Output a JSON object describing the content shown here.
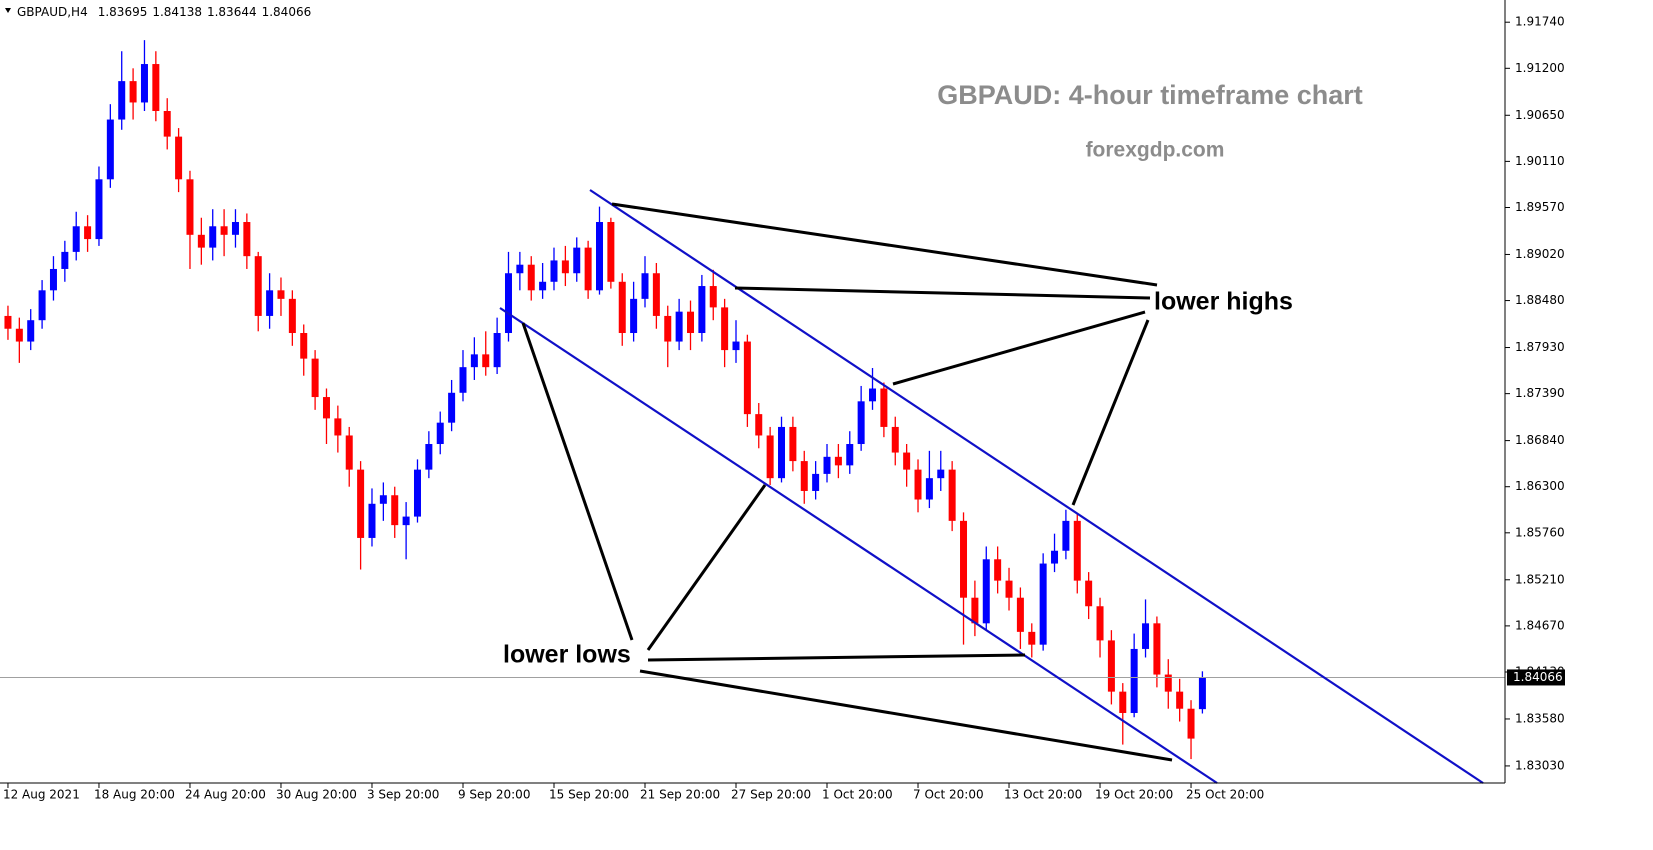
{
  "chart_data": {
    "type": "candlestick",
    "symbol": "GBPAUD,H4",
    "title": "GBPAUD: 4-hour timeframe chart",
    "subtitle": "forexgdp.com",
    "annotations": [
      "lower highs",
      "lower lows"
    ],
    "colors": {
      "up": "#0000ff",
      "down": "#ff0000"
    },
    "open": [
      1.883,
      1.8815,
      1.88,
      1.8825,
      1.886,
      1.8885,
      1.8905,
      1.8935,
      1.892,
      1.899,
      1.906,
      1.9105,
      1.908,
      1.9125,
      1.907,
      1.904,
      1.899,
      1.8925,
      1.891,
      1.8935,
      1.8925,
      1.894,
      1.89,
      1.883,
      1.886,
      1.885,
      1.881,
      1.878,
      1.8735,
      1.871,
      1.869,
      1.865,
      1.857,
      1.861,
      1.862,
      1.8585,
      1.8595,
      1.865,
      1.868,
      1.8705,
      1.874,
      1.877,
      1.8785,
      1.877,
      1.881,
      1.888,
      1.889,
      1.886,
      1.887,
      1.8895,
      1.888,
      1.891,
      1.886,
      1.894,
      1.887,
      1.881,
      1.885,
      1.888,
      1.883,
      1.88,
      1.8835,
      1.881,
      1.8865,
      1.884,
      1.879,
      1.88,
      1.8715,
      1.869,
      1.864,
      1.87,
      1.866,
      1.8625,
      1.8645,
      1.8665,
      1.8655,
      1.868,
      1.873,
      1.8745,
      1.87,
      1.867,
      1.865,
      1.8615,
      1.864,
      1.865,
      1.859,
      1.85,
      1.847,
      1.8545,
      1.852,
      1.85,
      1.846,
      1.8445,
      1.854,
      1.8555,
      1.859,
      1.852,
      1.849,
      1.845,
      1.839,
      1.8365,
      1.844,
      1.847,
      1.841,
      1.839,
      1.837,
      1.83695
    ],
    "high": [
      1.8842,
      1.8828,
      1.8838,
      1.8872,
      1.89,
      1.8918,
      1.8952,
      1.8948,
      1.9005,
      1.9078,
      1.914,
      1.912,
      1.9153,
      1.914,
      1.9085,
      1.905,
      1.9,
      1.8945,
      1.8955,
      1.8955,
      1.8955,
      1.895,
      1.8905,
      1.888,
      1.8875,
      1.886,
      1.882,
      1.879,
      1.8745,
      1.8725,
      1.87,
      1.866,
      1.8628,
      1.8635,
      1.863,
      1.8612,
      1.8662,
      1.8695,
      1.8718,
      1.8755,
      1.879,
      1.8805,
      1.8812,
      1.8828,
      1.8905,
      1.8905,
      1.89,
      1.8892,
      1.891,
      1.8912,
      1.8922,
      1.8918,
      1.8958,
      1.8945,
      1.888,
      1.887,
      1.89,
      1.8892,
      1.8842,
      1.885,
      1.8848,
      1.8878,
      1.8884,
      1.885,
      1.8825,
      1.8808,
      1.8728,
      1.87,
      1.8712,
      1.8712,
      1.8672,
      1.866,
      1.868,
      1.868,
      1.8695,
      1.8748,
      1.8769,
      1.8752,
      1.8712,
      1.868,
      1.8662,
      1.8672,
      1.8672,
      1.866,
      1.86,
      1.852,
      1.856,
      1.856,
      1.8535,
      1.8512,
      1.847,
      1.8552,
      1.8575,
      1.8603,
      1.8598,
      1.853,
      1.85,
      1.8462,
      1.84,
      1.8458,
      1.8498,
      1.8478,
      1.8428,
      1.8405,
      1.838,
      1.84138
    ],
    "low": [
      1.8802,
      1.8775,
      1.879,
      1.8815,
      1.8848,
      1.887,
      1.8895,
      1.8905,
      1.8912,
      1.898,
      1.9048,
      1.906,
      1.907,
      1.9058,
      1.9025,
      1.8975,
      1.8885,
      1.889,
      1.8895,
      1.89,
      1.891,
      1.8885,
      1.8812,
      1.8815,
      1.883,
      1.8795,
      1.876,
      1.872,
      1.868,
      1.867,
      1.863,
      1.8533,
      1.856,
      1.859,
      1.857,
      1.8545,
      1.8588,
      1.864,
      1.8668,
      1.8695,
      1.873,
      1.8755,
      1.876,
      1.8762,
      1.88,
      1.886,
      1.8848,
      1.885,
      1.886,
      1.8865,
      1.887,
      1.885,
      1.8855,
      1.8862,
      1.8795,
      1.88,
      1.884,
      1.8815,
      1.877,
      1.879,
      1.879,
      1.88,
      1.8825,
      1.877,
      1.8775,
      1.87,
      1.8675,
      1.8632,
      1.8635,
      1.8648,
      1.861,
      1.8615,
      1.8635,
      1.864,
      1.8645,
      1.8672,
      1.872,
      1.8688,
      1.8655,
      1.863,
      1.86,
      1.8605,
      1.8625,
      1.8578,
      1.8445,
      1.8455,
      1.8462,
      1.8505,
      1.8485,
      1.844,
      1.843,
      1.8438,
      1.853,
      1.8545,
      1.8505,
      1.8475,
      1.843,
      1.8375,
      1.8328,
      1.836,
      1.843,
      1.8395,
      1.837,
      1.8355,
      1.8311,
      1.83644
    ],
    "close": [
      1.8815,
      1.88,
      1.8825,
      1.886,
      1.8885,
      1.8905,
      1.8935,
      1.892,
      1.899,
      1.906,
      1.9105,
      1.908,
      1.9125,
      1.907,
      1.904,
      1.899,
      1.8925,
      1.891,
      1.8935,
      1.8925,
      1.894,
      1.89,
      1.883,
      1.886,
      1.885,
      1.881,
      1.878,
      1.8735,
      1.871,
      1.869,
      1.865,
      1.857,
      1.861,
      1.862,
      1.8585,
      1.8595,
      1.865,
      1.868,
      1.8705,
      1.874,
      1.877,
      1.8785,
      1.877,
      1.881,
      1.888,
      1.889,
      1.886,
      1.887,
      1.8895,
      1.888,
      1.891,
      1.886,
      1.894,
      1.887,
      1.881,
      1.885,
      1.888,
      1.883,
      1.88,
      1.8835,
      1.881,
      1.8865,
      1.884,
      1.879,
      1.88,
      1.8715,
      1.869,
      1.864,
      1.87,
      1.866,
      1.8625,
      1.8645,
      1.8665,
      1.8655,
      1.868,
      1.873,
      1.8745,
      1.87,
      1.867,
      1.865,
      1.8615,
      1.864,
      1.865,
      1.859,
      1.85,
      1.847,
      1.8545,
      1.852,
      1.85,
      1.846,
      1.8445,
      1.854,
      1.8555,
      1.859,
      1.852,
      1.849,
      1.845,
      1.839,
      1.8365,
      1.844,
      1.847,
      1.841,
      1.839,
      1.837,
      1.8335,
      1.84066
    ],
    "xlim": [
      -0.7,
      131.6
    ],
    "xticks": [
      {
        "value": 0,
        "label": "12 Aug 2021"
      },
      {
        "value": 8,
        "label": "18 Aug 20:00"
      },
      {
        "value": 16,
        "label": "24 Aug 20:00"
      },
      {
        "value": 24,
        "label": "30 Aug 20:00"
      },
      {
        "value": 32,
        "label": "3 Sep 20:00"
      },
      {
        "value": 40,
        "label": "9 Sep 20:00"
      },
      {
        "value": 48,
        "label": "15 Sep 20:00"
      },
      {
        "value": 56,
        "label": "21 Sep 20:00"
      },
      {
        "value": 64,
        "label": "27 Sep 20:00"
      },
      {
        "value": 72,
        "label": "1 Oct 20:00"
      },
      {
        "value": 80,
        "label": "7 Oct 20:00"
      },
      {
        "value": 88,
        "label": "13 Oct 20:00"
      },
      {
        "value": 96,
        "label": "19 Oct 20:00"
      },
      {
        "value": 104,
        "label": "25 Oct 20:00"
      }
    ],
    "ylim": [
      1.8283,
      1.92
    ],
    "yticks": [
      {
        "value": 1.9174,
        "label": "1.91740"
      },
      {
        "value": 1.912,
        "label": "1.91200"
      },
      {
        "value": 1.9065,
        "label": "1.90650"
      },
      {
        "value": 1.9011,
        "label": "1.90110"
      },
      {
        "value": 1.8957,
        "label": "1.89570"
      },
      {
        "value": 1.8902,
        "label": "1.89020"
      },
      {
        "value": 1.8848,
        "label": "1.88480"
      },
      {
        "value": 1.8793,
        "label": "1.87930"
      },
      {
        "value": 1.8739,
        "label": "1.87390"
      },
      {
        "value": 1.8684,
        "label": "1.86840"
      },
      {
        "value": 1.863,
        "label": "1.86300"
      },
      {
        "value": 1.8576,
        "label": "1.85760"
      },
      {
        "value": 1.8521,
        "label": "1.85210"
      },
      {
        "value": 1.8467,
        "label": "1.84670"
      },
      {
        "value": 1.8413,
        "label": "1.84130"
      },
      {
        "value": 1.8358,
        "label": "1.83580"
      },
      {
        "value": 1.8303,
        "label": "1.83030"
      }
    ]
  }
}
